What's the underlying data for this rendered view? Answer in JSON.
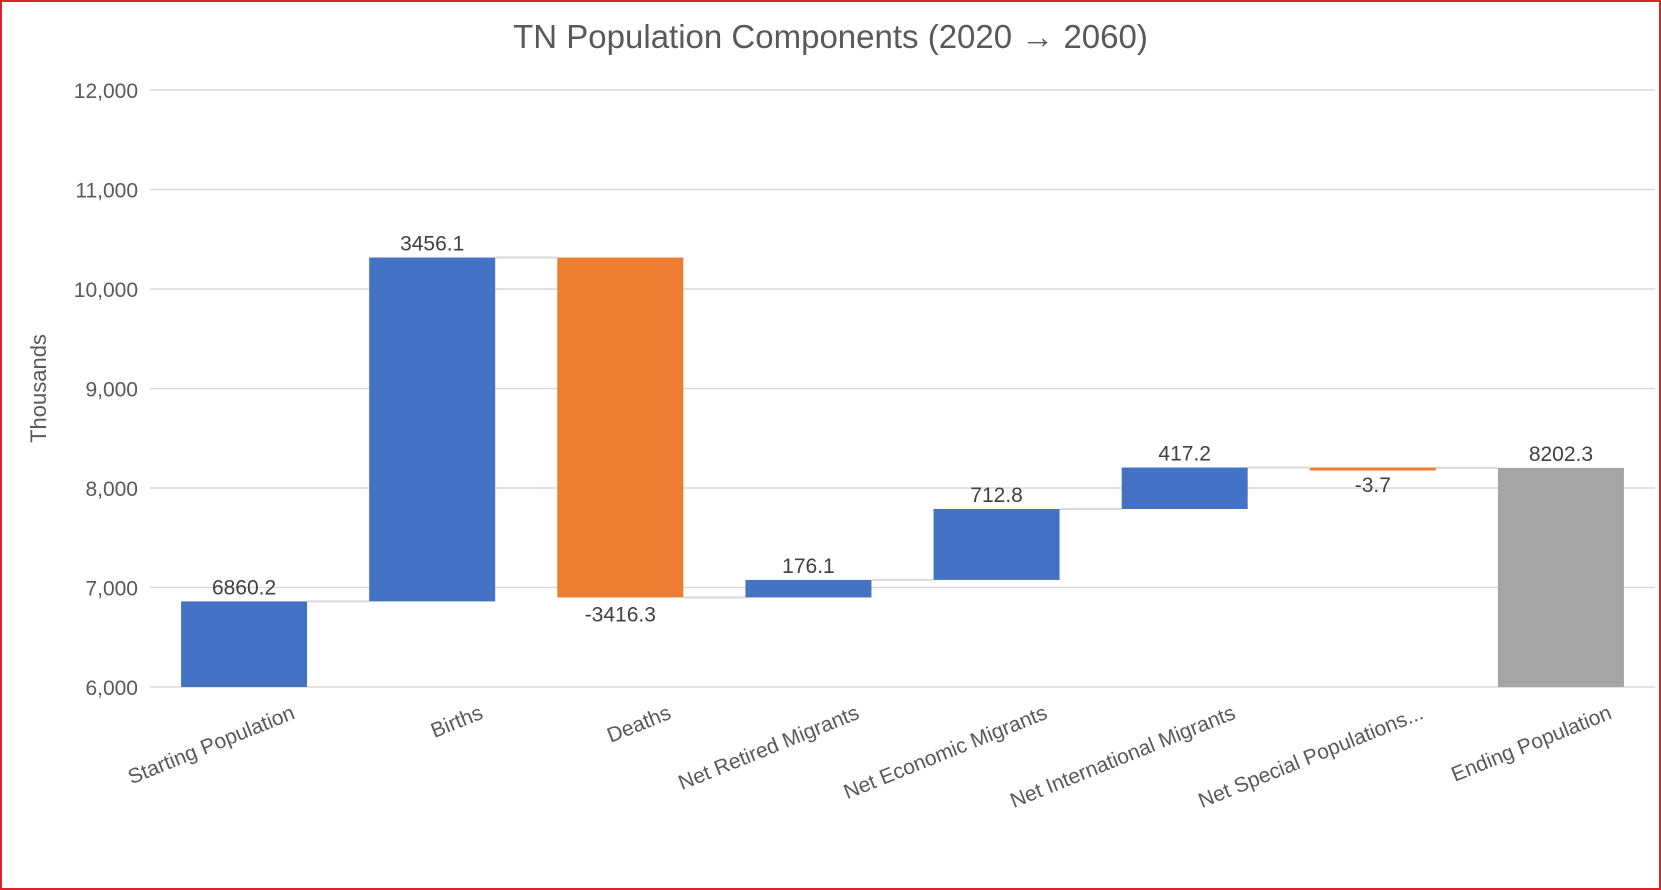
{
  "chart_data": {
    "type": "waterfall",
    "title": "TN Population Components (2020 → 2060)",
    "ylabel": "Thousands",
    "xlabel": "",
    "ylim": [
      6000,
      12000
    ],
    "yticks": [
      6000,
      7000,
      8000,
      9000,
      10000,
      11000,
      12000
    ],
    "ytick_labels": [
      "6,000",
      "7,000",
      "8,000",
      "9,000",
      "10,000",
      "11,000",
      "12,000"
    ],
    "grid": true,
    "categories": [
      "Starting Population",
      "Births",
      "Deaths",
      "Net Retired Migrants",
      "Net Economic Migrants",
      "Net International Migrants",
      "Net Special Populations...",
      "Ending Population"
    ],
    "values": [
      6860.2,
      3456.1,
      -3416.3,
      176.1,
      712.8,
      417.2,
      -3.7,
      8202.3
    ],
    "value_labels": [
      "6860.2",
      "3456.1",
      "-3416.3",
      "176.1",
      "712.8",
      "417.2",
      "-3.7",
      "8202.3"
    ],
    "kinds": [
      "total",
      "delta",
      "delta",
      "delta",
      "delta",
      "delta",
      "delta",
      "total"
    ],
    "colors": {
      "increase": "#4472c4",
      "decrease": "#ed7d31",
      "total_end": "#a5a5a5",
      "grid": "#d9d9d9",
      "text": "#404040",
      "axis_text": "#595959"
    }
  }
}
